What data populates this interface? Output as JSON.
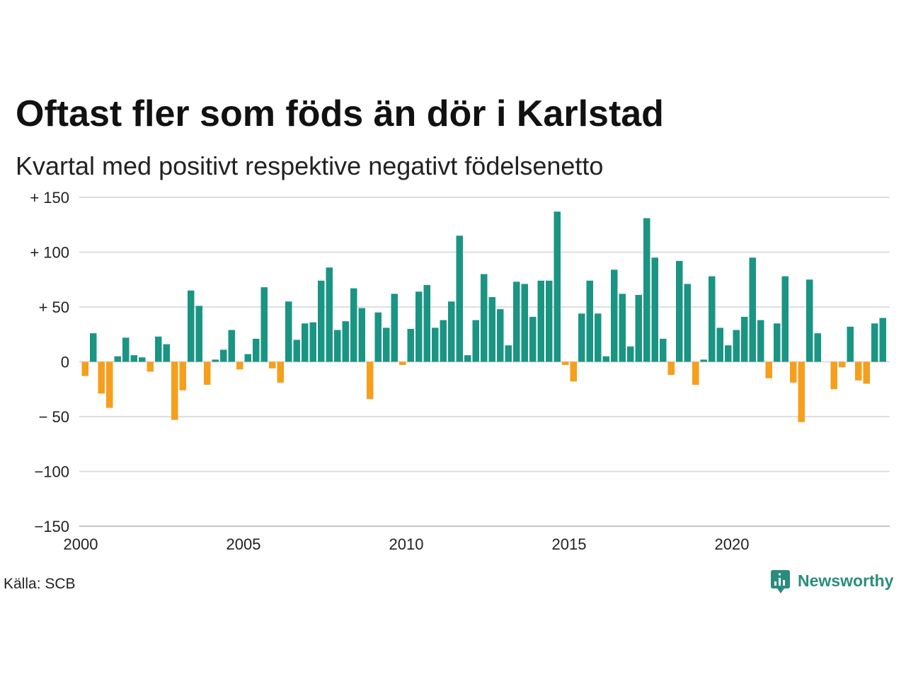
{
  "chart_data": {
    "type": "bar",
    "title": "Oftast fler som föds än dör i Karlstad",
    "subtitle": "Kvartal med positivt respektive negativt födelsenetto",
    "xlabel": "",
    "ylabel": "",
    "ylim": [
      -150,
      150
    ],
    "y_ticks": [
      150,
      100,
      50,
      0,
      -50,
      -100,
      -150
    ],
    "y_tick_labels": [
      "+ 150",
      "+ 100",
      "+ 50",
      "0",
      "− 50",
      "−100",
      "−150"
    ],
    "x_tick_labels": [
      "2000",
      "2005",
      "2010",
      "2015",
      "2020"
    ],
    "x": [
      "2000Q1",
      "2000Q2",
      "2000Q3",
      "2000Q4",
      "2001Q1",
      "2001Q2",
      "2001Q3",
      "2001Q4",
      "2002Q1",
      "2002Q2",
      "2002Q3",
      "2002Q4",
      "2003Q1",
      "2003Q2",
      "2003Q3",
      "2003Q4",
      "2004Q1",
      "2004Q2",
      "2004Q3",
      "2004Q4",
      "2005Q1",
      "2005Q2",
      "2005Q3",
      "2005Q4",
      "2006Q1",
      "2006Q2",
      "2006Q3",
      "2006Q4",
      "2007Q1",
      "2007Q2",
      "2007Q3",
      "2007Q4",
      "2008Q1",
      "2008Q2",
      "2008Q3",
      "2008Q4",
      "2009Q1",
      "2009Q2",
      "2009Q3",
      "2009Q4",
      "2010Q1",
      "2010Q2",
      "2010Q3",
      "2010Q4",
      "2011Q1",
      "2011Q2",
      "2011Q3",
      "2011Q4",
      "2012Q1",
      "2012Q2",
      "2012Q3",
      "2012Q4",
      "2013Q1",
      "2013Q2",
      "2013Q3",
      "2013Q4",
      "2014Q1",
      "2014Q2",
      "2014Q3",
      "2014Q4",
      "2015Q1",
      "2015Q2",
      "2015Q3",
      "2015Q4",
      "2016Q1",
      "2016Q2",
      "2016Q3",
      "2016Q4",
      "2017Q1",
      "2017Q2",
      "2017Q3",
      "2017Q4",
      "2018Q1",
      "2018Q2",
      "2018Q3",
      "2018Q4",
      "2019Q1",
      "2019Q2",
      "2019Q3",
      "2019Q4",
      "2020Q1",
      "2020Q2",
      "2020Q3",
      "2020Q4",
      "2021Q1",
      "2021Q2",
      "2021Q3",
      "2021Q4",
      "2022Q1",
      "2022Q2",
      "2022Q3",
      "2022Q4",
      "2023Q1",
      "2023Q2",
      "2023Q3",
      "2023Q4",
      "2024Q1",
      "2024Q2",
      "2024Q3"
    ],
    "series": [
      {
        "values": [
          -13,
          26,
          -29,
          -42,
          5,
          22,
          6,
          4,
          -9,
          23,
          16,
          -53,
          -26,
          65,
          51,
          -21,
          2,
          11,
          29,
          -7,
          7,
          21,
          68,
          -6,
          -19,
          55,
          20,
          35,
          36,
          74,
          86,
          29,
          37,
          67,
          49,
          -34,
          45,
          31,
          62,
          -3,
          30,
          64,
          70,
          31,
          38,
          55,
          115,
          6,
          38,
          80,
          59,
          48,
          15,
          73,
          71,
          41,
          74,
          74,
          137,
          -3,
          -18,
          44,
          74,
          44,
          5,
          84,
          62,
          14,
          61,
          131,
          95,
          21,
          -12,
          92,
          71,
          -21,
          2,
          78,
          31,
          15,
          29,
          41,
          95,
          38,
          -15,
          35,
          78,
          -19,
          -55,
          75,
          26,
          0,
          -25,
          -5,
          32,
          -17,
          -20,
          35,
          40
        ]
      }
    ],
    "colors": {
      "positive": "#1a9583",
      "negative": "#f59f1d"
    },
    "grid": true,
    "legend": "none"
  },
  "source": "Källa: SCB",
  "brand": {
    "name": "Newsworthy",
    "icon": "chart-bubble-icon",
    "color": "#2b8c7e"
  }
}
